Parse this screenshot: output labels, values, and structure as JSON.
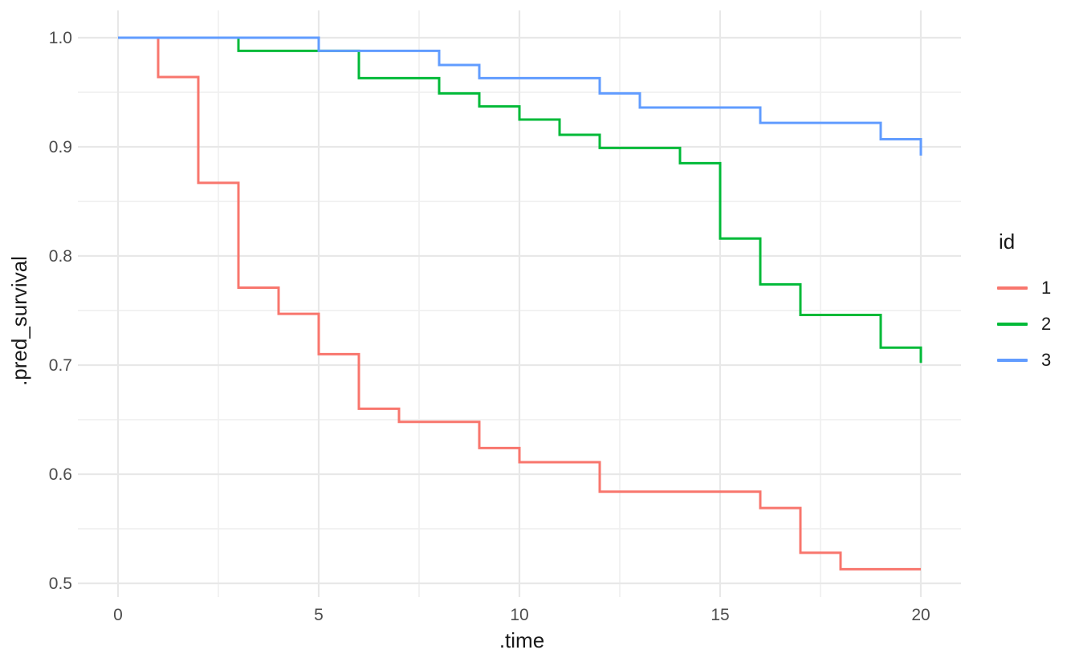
{
  "chart_data": {
    "type": "line",
    "subtype": "step-survival-curves",
    "title": "",
    "xlabel": ".time",
    "ylabel": ".pred_survival",
    "x_tick_labels": [
      "0",
      "5",
      "10",
      "15",
      "20"
    ],
    "x_ticks": [
      0,
      5,
      10,
      15,
      20
    ],
    "x_minor_ticks": [
      2.5,
      7.5,
      12.5,
      17.5
    ],
    "y_tick_labels": [
      "0.5",
      "0.6",
      "0.7",
      "0.8",
      "0.9",
      "1.0"
    ],
    "y_ticks": [
      0.5,
      0.6,
      0.7,
      0.8,
      0.9,
      1.0
    ],
    "y_minor_ticks": [
      0.55,
      0.65,
      0.75,
      0.85,
      0.95
    ],
    "xlim": [
      -1,
      21
    ],
    "ylim": [
      0.489,
      1.024
    ],
    "end_time": 20,
    "grid": "on",
    "theme": {
      "background": "#FFFFFF",
      "grid_major_color": "#E8E8E8",
      "grid_minor_color": "#F0F0F0",
      "tick_label_color": "#4D4D4D",
      "axis_title_color": "#1A1A1A"
    },
    "legend": {
      "title": "id",
      "position": "right",
      "entries": [
        {
          "label": "1",
          "color": "#F8766D"
        },
        {
          "label": "2",
          "color": "#00BA38"
        },
        {
          "label": "3",
          "color": "#619CFF"
        }
      ]
    },
    "series": [
      {
        "name": "1",
        "color": "#F8766D",
        "steps": [
          [
            0,
            1.0
          ],
          [
            1,
            0.964
          ],
          [
            2,
            0.867
          ],
          [
            3,
            0.771
          ],
          [
            4,
            0.747
          ],
          [
            5,
            0.71
          ],
          [
            6,
            0.66
          ],
          [
            7,
            0.648
          ],
          [
            9,
            0.624
          ],
          [
            10,
            0.611
          ],
          [
            12,
            0.584
          ],
          [
            16,
            0.569
          ],
          [
            17,
            0.528
          ],
          [
            18,
            0.513
          ]
        ]
      },
      {
        "name": "2",
        "color": "#00BA38",
        "steps": [
          [
            0,
            1.0
          ],
          [
            3,
            0.988
          ],
          [
            6,
            0.963
          ],
          [
            8,
            0.949
          ],
          [
            9,
            0.937
          ],
          [
            10,
            0.925
          ],
          [
            11,
            0.911
          ],
          [
            12,
            0.899
          ],
          [
            14,
            0.885
          ],
          [
            15,
            0.816
          ],
          [
            16,
            0.774
          ],
          [
            17,
            0.746
          ],
          [
            19,
            0.716
          ],
          [
            20,
            0.702
          ]
        ]
      },
      {
        "name": "3",
        "color": "#619CFF",
        "steps": [
          [
            0,
            1.0
          ],
          [
            5,
            0.988
          ],
          [
            8,
            0.975
          ],
          [
            9,
            0.963
          ],
          [
            12,
            0.949
          ],
          [
            13,
            0.936
          ],
          [
            16,
            0.922
          ],
          [
            19,
            0.907
          ],
          [
            20,
            0.892
          ]
        ]
      }
    ]
  }
}
